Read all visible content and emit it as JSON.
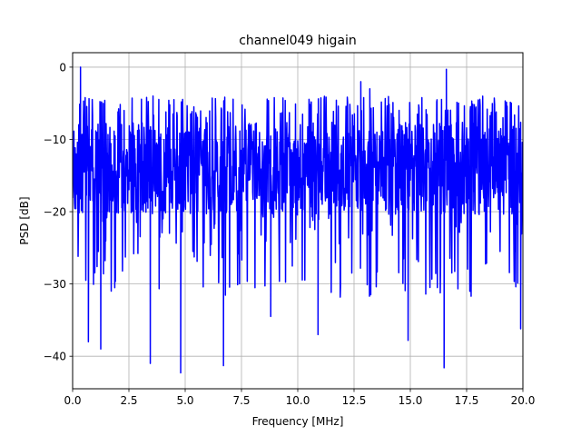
{
  "chart_data": {
    "type": "line",
    "title": "channel049 higain",
    "xlabel": "Frequency [MHz]",
    "ylabel": "PSD [dB]",
    "xlim": [
      0,
      20
    ],
    "ylim": [
      -44.5,
      2
    ],
    "grid": true,
    "x_ticks": [
      0,
      2.5,
      5,
      7.5,
      10,
      12.5,
      15,
      17.5,
      20
    ],
    "x_tick_labels": [
      "0.0",
      "2.5",
      "5.0",
      "7.5",
      "10.0",
      "12.5",
      "15.0",
      "17.5",
      "20.0"
    ],
    "y_ticks": [
      0,
      -10,
      -20,
      -30,
      -40
    ],
    "y_tick_labels": [
      "0",
      "−10",
      "−20",
      "−30",
      "−40"
    ],
    "series": [
      {
        "color": "#0000ff",
        "baseline": -14,
        "spread": 4,
        "upper_envelope": -4,
        "notable_points": [
          {
            "x": 0.35,
            "y": 0
          },
          {
            "x": 0.7,
            "y": -38
          },
          {
            "x": 1.25,
            "y": -39
          },
          {
            "x": 3.45,
            "y": -41
          },
          {
            "x": 4.8,
            "y": -42.3
          },
          {
            "x": 6.7,
            "y": -41.3
          },
          {
            "x": 8.8,
            "y": -34.5
          },
          {
            "x": 10.9,
            "y": -37
          },
          {
            "x": 14.9,
            "y": -37.8
          },
          {
            "x": 16.5,
            "y": -41.6
          },
          {
            "x": 19.9,
            "y": -36.2
          },
          {
            "x": 16.6,
            "y": -0.3
          },
          {
            "x": 13.2,
            "y": -3
          },
          {
            "x": 12.8,
            "y": -2
          }
        ]
      }
    ]
  }
}
